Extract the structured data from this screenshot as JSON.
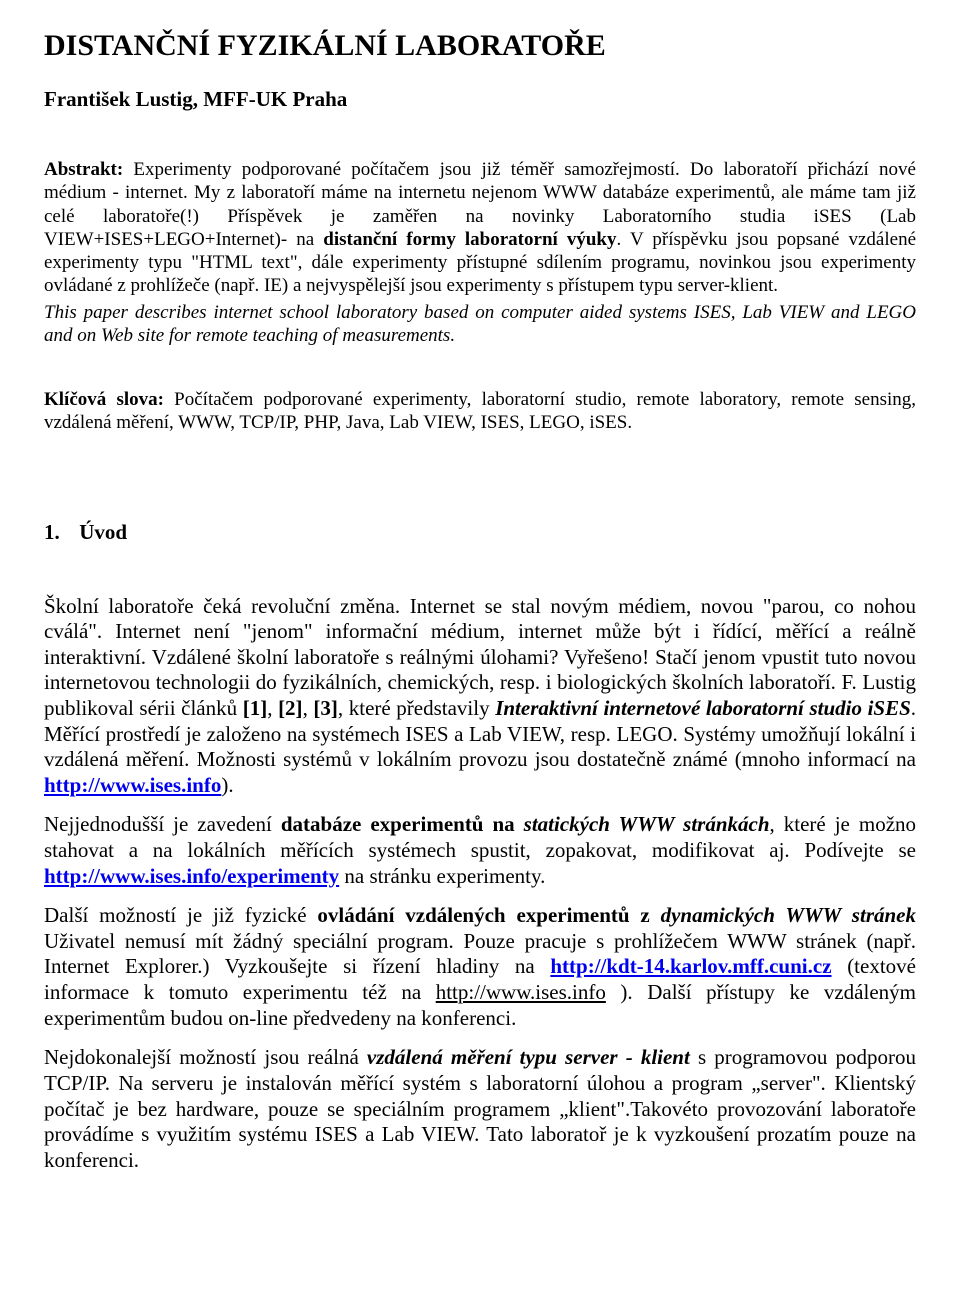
{
  "title": "DISTANČNÍ FYZIKÁLNÍ LABORATOŘE",
  "author": "František Lustig, MFF-UK Praha",
  "abstract": {
    "label": "Abstrakt:",
    "cs_1": "Experimenty podporované počítačem jsou již téměř samozřejmostí. Do laboratoří přichází nové médium - internet. My z laboratoří máme na internetu nejenom WWW databáze experimentů, ale máme tam již celé laboratoře(!) Příspěvek je zaměřen na novinky Laboratorního studia iSES (Lab VIEW+ISES+LEGO+Internet)- na ",
    "cs_bold": "distanční formy laboratorní výuky",
    "cs_2": ". V příspěvku jsou popsané vzdálené experimenty typu \"HTML text\", dále experimenty přístupné sdílením programu, novinkou jsou experimenty ovládané z prohlížeče (např. IE) a nejvyspělejší jsou experimenty s přístupem typu server-klient.",
    "en": "This paper describes internet school laboratory based on computer aided systems ISES, Lab VIEW and LEGO and on Web site for remote teaching of measurements."
  },
  "keywords": {
    "label": "Klíčová slova:",
    "text": " Počítačem podporované experimenty, laboratorní studio, remote laboratory, remote sensing, vzdálená měření, WWW, TCP/IP, PHP, Java, Lab VIEW, ISES, LEGO, iSES."
  },
  "section1": {
    "num": "1.",
    "title": "Úvod"
  },
  "p1": {
    "t1": "Školní laboratoře čeká revoluční změna. Internet se stal novým médiem, novou \"parou, co nohou cválá\". Internet není \"jenom\" informační médium, internet může být i řídící, měřící a reálně interaktivní. Vzdálené školní laboratoře s reálnými úlohami? Vyřešeno! Stačí jenom vpustit tuto novou internetovou technologii do fyzikálních, chemických, resp. i biologických školních laboratoří. F. Lustig publikoval sérii článků ",
    "ref1": "[1]",
    "t2": ", ",
    "ref2": "[2]",
    "t3": ", ",
    "ref3": "[3]",
    "t4": ", které představily ",
    "bi1": "Interaktivní internetové laboratorní studio iSES",
    "t5": ". Měřící prostředí je založeno na systémech ISES a Lab VIEW, resp. LEGO. Systémy umožňují lokální i vzdálená měření. Možnosti systémů v lokálním provozu jsou dostatečně známé (mnoho informací na ",
    "link1": "http://www.ises.info",
    "t6": ")."
  },
  "p2": {
    "t1": "Nejjednodušší je zavedení ",
    "b1": "databáze experimentů na ",
    "bi1": "statických WWW stránkách",
    "t2": ", které je možno stahovat a na lokálních měřících systémech spustit, zopakovat, modifikovat aj. Podívejte se ",
    "link1": "http://www.ises.info/experimenty",
    "t3": " na stránku experimenty."
  },
  "p3": {
    "t1": "Další možností je již fyzické ",
    "b1": "ovládání vzdálených experimentů z ",
    "bi1": "dynamických WWW stránek",
    "t2": " Uživatel nemusí mít žádný speciální program. Pouze pracuje s prohlížečem WWW stránek (např. Internet Explorer.) Vyzkoušejte si řízení hladiny na ",
    "link1": "http://kdt-14.karlov.mff.cuni.cz",
    "t3": " (textové informace k tomuto experimentu též na ",
    "link2": "http://www.ises.info",
    "t4": " ). Další přístupy ke vzdáleným experimentům budou on-line předvedeny na konferenci."
  },
  "p4": {
    "t1": "Nejdokonalejší možností jsou reálná ",
    "bi1": "vzdálená měření typu server - klient",
    "t2": " s programovou podporou TCP/IP. Na serveru je instalován měřící systém s laboratorní úlohou a program „server\". Klientský počítač je bez hardware, pouze se speciálním programem „klient\".Takovéto provozování laboratoře provádíme s využitím systému ISES a Lab VIEW. Tato laboratoř je k vyzkoušení prozatím pouze na konferenci."
  },
  "links": {
    "ises": "http://www.ises.info",
    "ises_exp": "http://www.ises.info/experimenty",
    "kdt": "http://kdt-14.karlov.mff.cuni.cz"
  }
}
